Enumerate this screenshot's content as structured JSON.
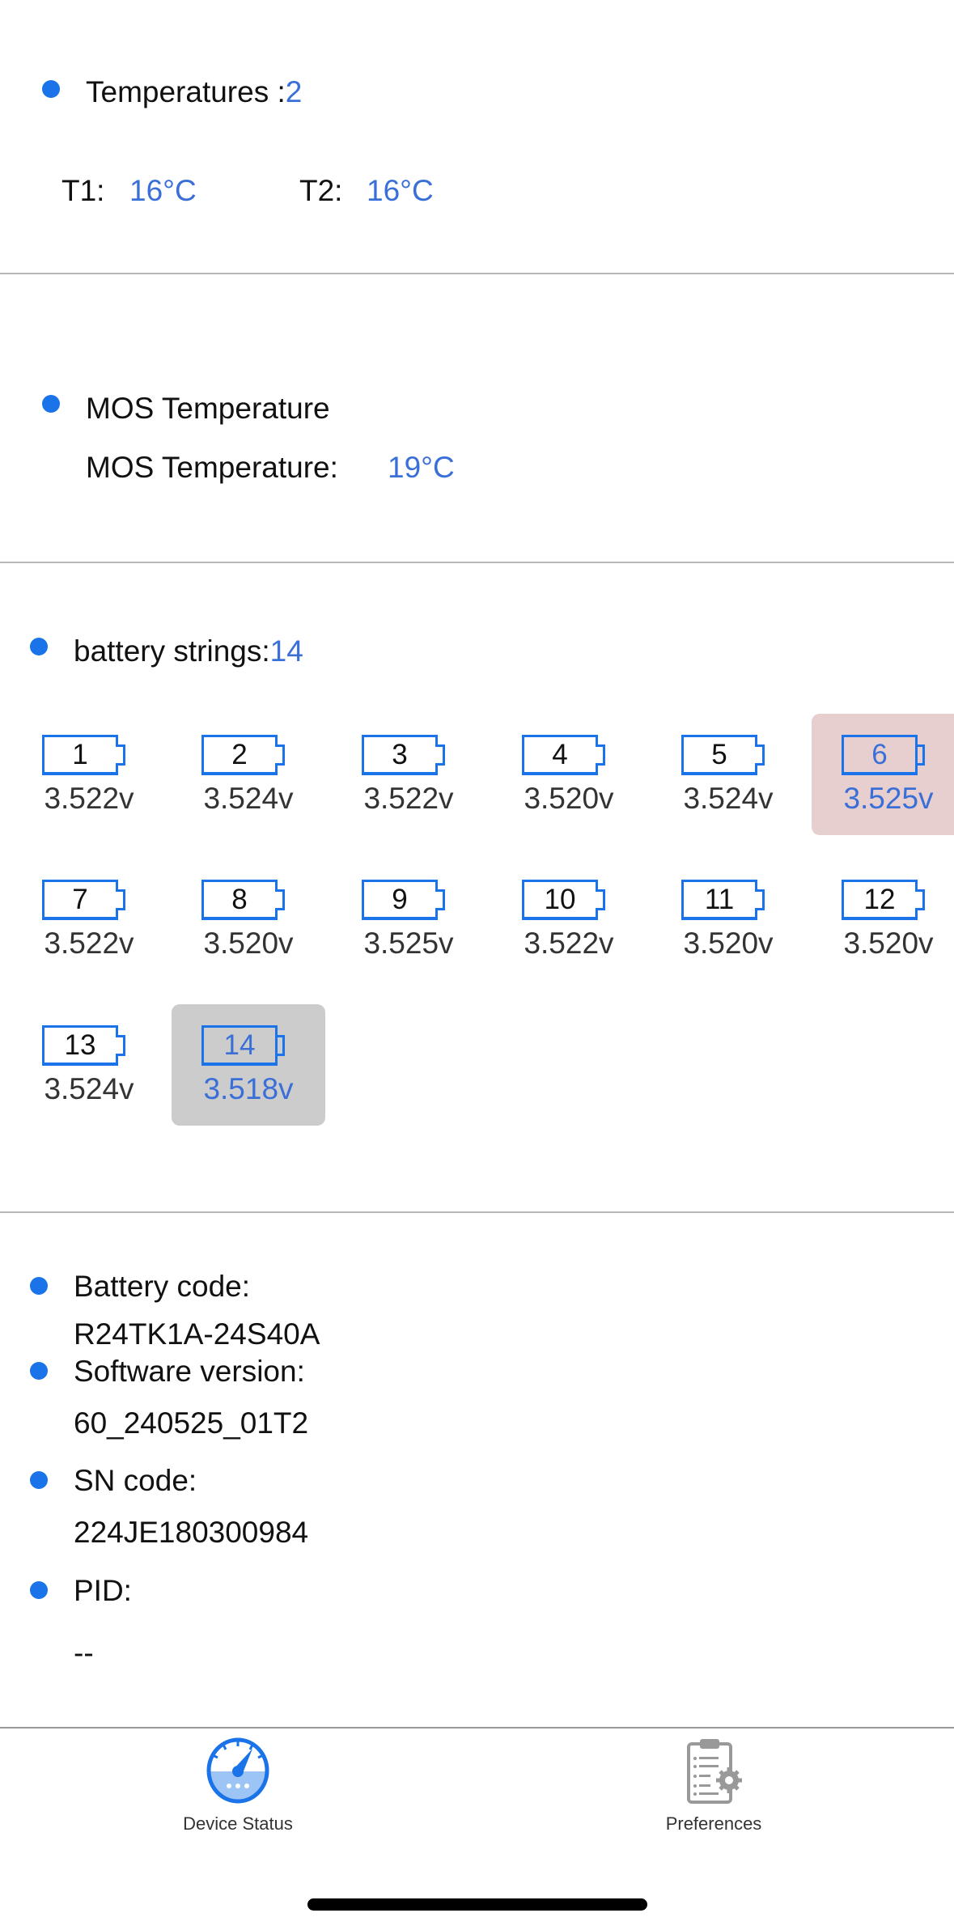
{
  "temperatures": {
    "label": "Temperatures :",
    "count": "2",
    "items": [
      {
        "label": "T1:",
        "value": "16°C"
      },
      {
        "label": "T2:",
        "value": "16°C"
      }
    ]
  },
  "mos": {
    "title": "MOS Temperature",
    "label": "MOS Temperature:",
    "value": "19°C"
  },
  "strings": {
    "label": "battery strings:",
    "count": "14",
    "cells": [
      {
        "num": "1",
        "voltage": "3.522v"
      },
      {
        "num": "2",
        "voltage": "3.524v"
      },
      {
        "num": "3",
        "voltage": "3.522v"
      },
      {
        "num": "4",
        "voltage": "3.520v"
      },
      {
        "num": "5",
        "voltage": "3.524v"
      },
      {
        "num": "6",
        "voltage": "3.525v",
        "highlight": "max"
      },
      {
        "num": "7",
        "voltage": "3.522v"
      },
      {
        "num": "8",
        "voltage": "3.520v"
      },
      {
        "num": "9",
        "voltage": "3.525v"
      },
      {
        "num": "10",
        "voltage": "3.522v"
      },
      {
        "num": "11",
        "voltage": "3.520v"
      },
      {
        "num": "12",
        "voltage": "3.520v"
      },
      {
        "num": "13",
        "voltage": "3.524v"
      },
      {
        "num": "14",
        "voltage": "3.518v",
        "highlight": "min"
      }
    ],
    "colors": {
      "max_bg": "#e8cfcf",
      "min_bg": "#cccccc",
      "accent": "#1a73e8"
    }
  },
  "info": [
    {
      "label": "Battery code:",
      "value": "R24TK1A-24S40A"
    },
    {
      "label": "Software version:",
      "value": "60_240525_01T2"
    },
    {
      "label": "SN code:",
      "value": "224JE180300984"
    },
    {
      "label": "PID:",
      "value": "--"
    }
  ],
  "tabbar": {
    "items": [
      {
        "label": "Device Status",
        "icon": "gauge-icon",
        "active": true
      },
      {
        "label": "Preferences",
        "icon": "clipboard-gear-icon",
        "active": false
      }
    ]
  }
}
